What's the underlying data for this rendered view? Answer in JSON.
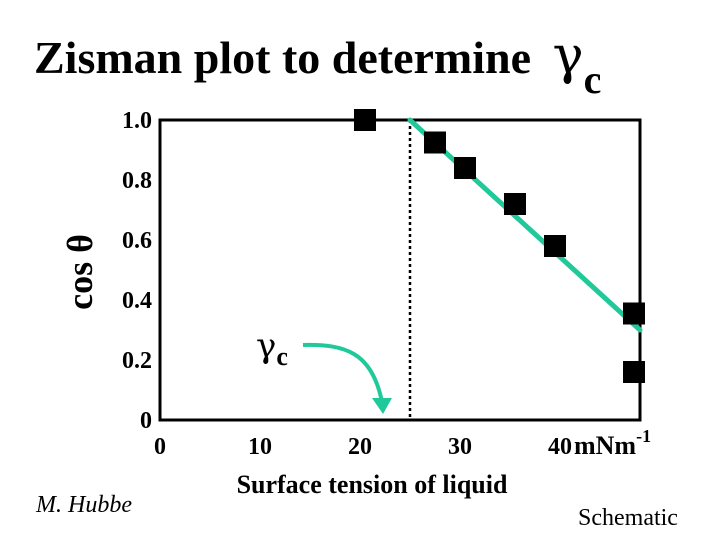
{
  "title": {
    "text": "Zisman plot to determine ",
    "gamma": "γ",
    "sub": "c"
  },
  "author": "M. Hubbe",
  "note": "Schematic",
  "chart_data": {
    "type": "scatter",
    "title": "Zisman plot to determine γc",
    "xlabel": "Surface tension of liquid",
    "xunit": "mNm",
    "xunit_exp": "-1",
    "ylabel": "cos θ",
    "xlim": [
      0,
      48
    ],
    "ylim": [
      0,
      1.0
    ],
    "x_ticks": [
      0,
      10,
      20,
      30,
      40
    ],
    "x_tick_labels": [
      "0",
      "10",
      "20",
      "30",
      "40"
    ],
    "y_ticks": [
      0,
      0.2,
      0.4,
      0.6,
      0.8,
      1.0
    ],
    "y_tick_labels": [
      "0",
      "0.2",
      "0.4",
      "0.6",
      "0.8",
      "1.0"
    ],
    "grid": false,
    "series": [
      {
        "marker": "square",
        "color": "#000000",
        "x": [
          20.5,
          27.5,
          30.5,
          35.5,
          39.5,
          47.5,
          48
        ],
        "y": [
          1.0,
          0.925,
          0.84,
          0.72,
          0.58,
          0.355,
          0.16
        ]
      }
    ],
    "fit_line": {
      "color": "#1fc99a",
      "x": [
        25.0,
        48.0
      ],
      "y": [
        1.0,
        0.3
      ]
    },
    "critical_line": {
      "x": 25.0,
      "style": "dotted"
    },
    "annotation": {
      "symbol": "γ",
      "sub": "c",
      "arrow_color": "#1fc99a"
    }
  }
}
